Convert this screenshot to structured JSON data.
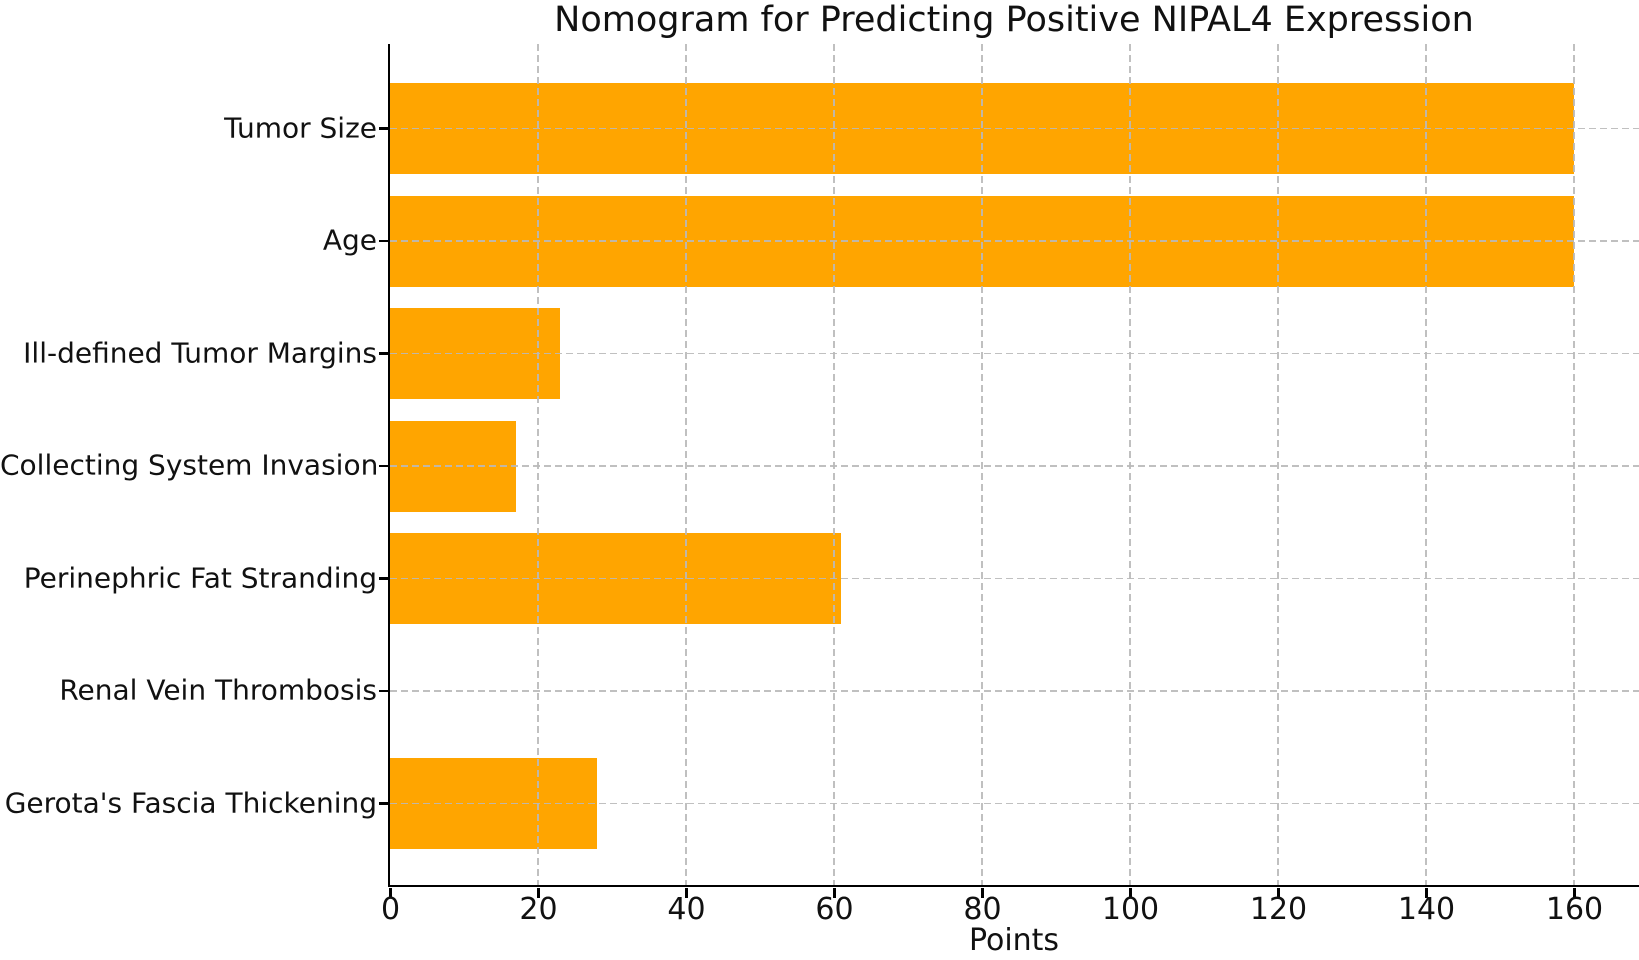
{
  "chart_data": {
    "type": "bar",
    "orientation": "horizontal",
    "title": "Nomogram for Predicting Positive NIPAL4 Expression",
    "xlabel": "Points",
    "ylabel": "",
    "categories": [
      "Tumor Size",
      "Age",
      "Ill-defined Tumor Margins",
      "Collecting System Invasion",
      "Perinephric Fat Stranding",
      "Renal Vein Thrombosis",
      "Gerota's Fascia Thickening"
    ],
    "values": [
      160,
      160,
      23,
      17,
      61,
      0,
      28
    ],
    "xticks": [
      0,
      20,
      40,
      60,
      80,
      100,
      120,
      140,
      160
    ],
    "xlim": [
      0,
      169
    ],
    "grid": "on",
    "grid_style": "dashed",
    "grid_above_bars": true,
    "legend_position": "none",
    "bar_color": "#FFA500",
    "grid_color": "#B9B9B9",
    "axis_color": "#000000",
    "text_color": "#111111",
    "background_color": "#FFFFFF"
  }
}
